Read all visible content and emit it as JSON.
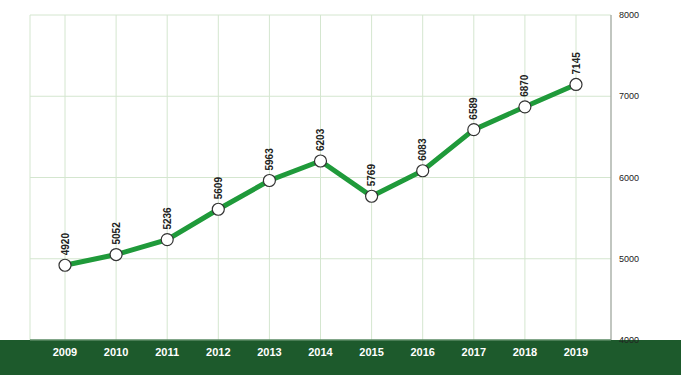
{
  "chart_data": {
    "type": "line",
    "categories": [
      "2009",
      "2010",
      "2011",
      "2012",
      "2013",
      "2014",
      "2015",
      "2016",
      "2017",
      "2018",
      "2019"
    ],
    "values": [
      4920,
      5052,
      5236,
      5609,
      5963,
      6203,
      5769,
      6083,
      6589,
      6870,
      7145
    ],
    "color": "#1f9a3a",
    "ylim": [
      4000,
      8000
    ],
    "yticks": [
      4000,
      5000,
      6000,
      7000,
      8000
    ],
    "grid": true,
    "data_labels": true,
    "marker": "circle"
  }
}
